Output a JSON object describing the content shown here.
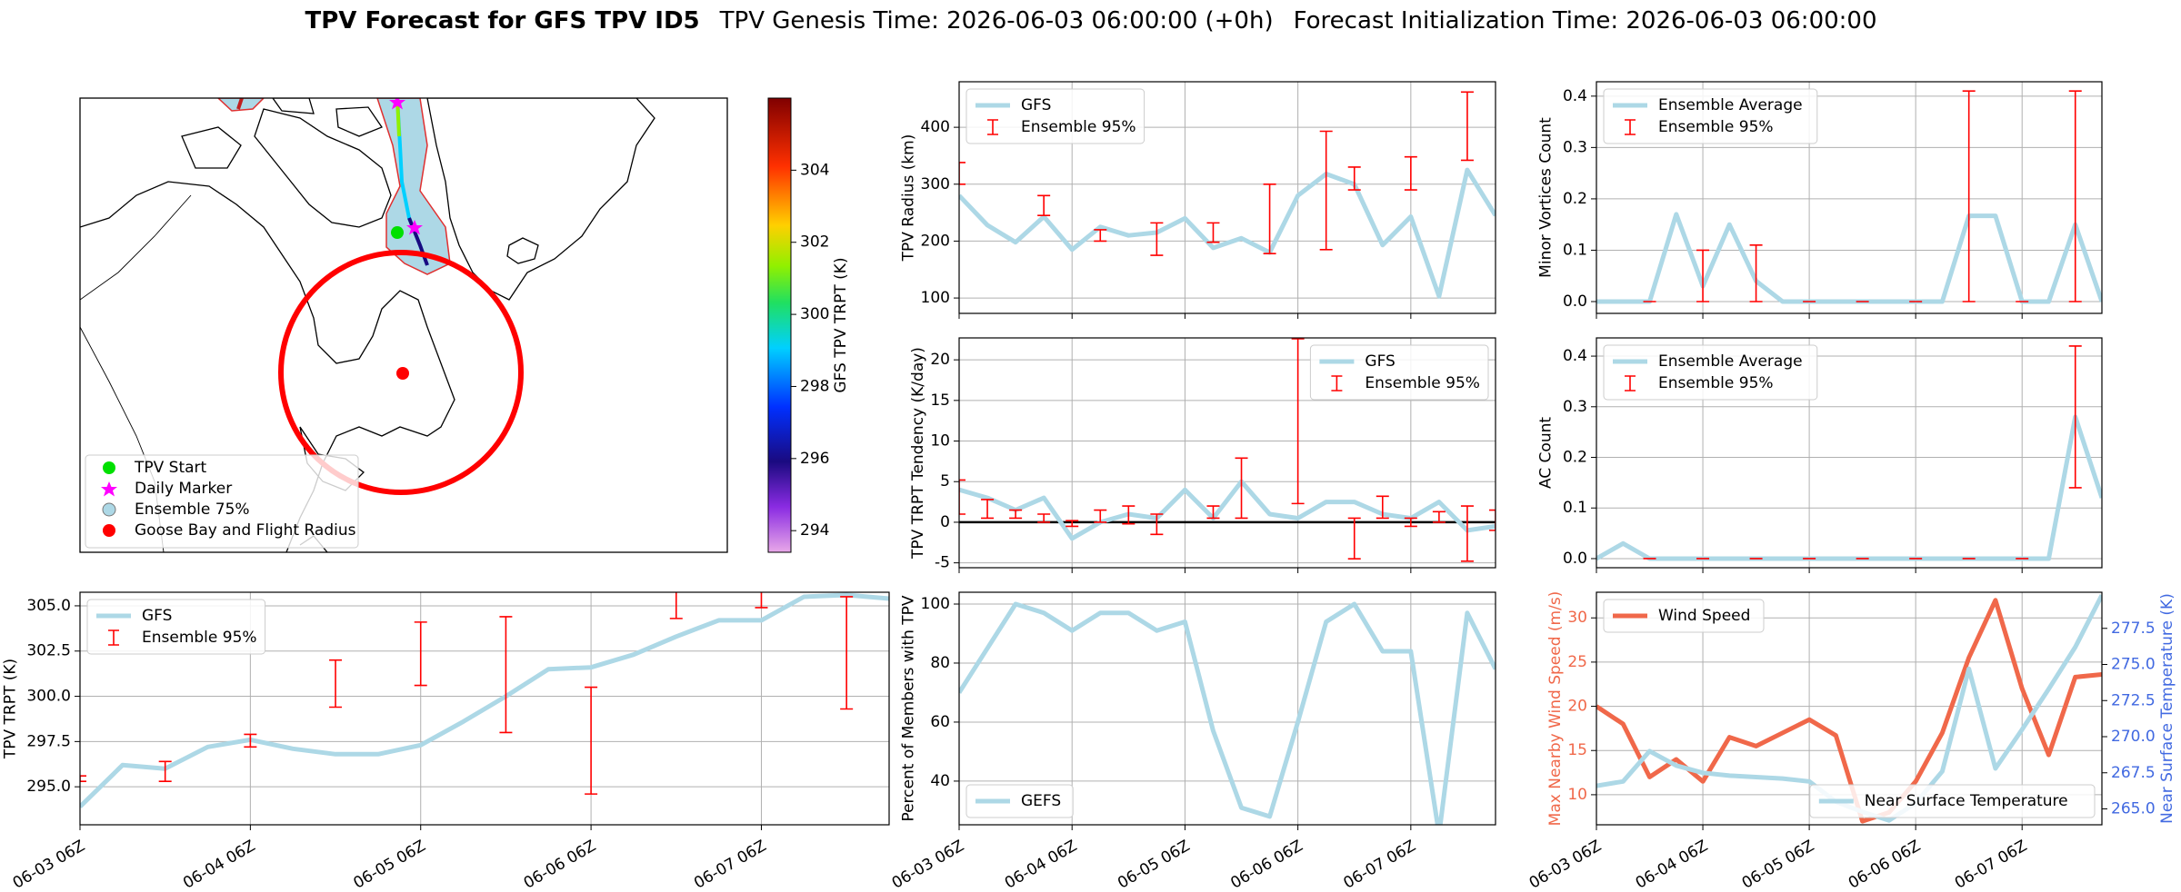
{
  "title": {
    "main": "TPV Forecast for GFS TPV ID5",
    "genesis": "TPV Genesis Time: 2026-06-03 06:00:00 (+0h)",
    "init": "Forecast Initialization Time: 2026-06-03 06:00:00"
  },
  "map": {
    "legend": [
      "TPV Start",
      "Daily Marker",
      "Ensemble 75%",
      "Goose Bay and Flight Radius"
    ],
    "colorbar": {
      "label": "GFS TPV TRPT (K)",
      "lim": [
        293.4,
        306
      ],
      "ticks": [
        294,
        296,
        298,
        300,
        302,
        304
      ]
    }
  },
  "chart_data": [
    {
      "type": "line",
      "ylabel": "TPV TRPT (K)",
      "grid": true,
      "legend": "upper left",
      "x": [
        "06-03 06Z",
        "06-03 12Z",
        "06-03 18Z",
        "06-04 00Z",
        "06-04 06Z",
        "06-04 12Z",
        "06-04 18Z",
        "06-05 00Z",
        "06-05 06Z",
        "06-05 12Z",
        "06-05 18Z",
        "06-06 00Z",
        "06-06 06Z",
        "06-06 12Z",
        "06-06 18Z",
        "06-07 00Z",
        "06-07 06Z",
        "06-07 12Z",
        "06-07 18Z",
        "06-08 00Z"
      ],
      "xticks": [
        "06-03 06Z",
        "06-04 06Z",
        "06-05 06Z",
        "06-06 06Z",
        "06-07 06Z"
      ],
      "ylim": [
        292.9,
        305.75
      ],
      "yticks": [
        {
          "value": 295,
          "label": "295.0"
        },
        {
          "value": 297.5,
          "label": "297.5"
        },
        {
          "value": 300,
          "label": "300.0"
        },
        {
          "value": 302.5,
          "label": "302.5"
        },
        {
          "value": 305,
          "label": "305.0"
        }
      ],
      "series": [
        {
          "name": "GFS",
          "color": "#add8e6",
          "values": [
            293.9,
            296.2,
            296.0,
            297.2,
            297.6,
            297.1,
            296.8,
            296.8,
            297.3,
            298.6,
            300.0,
            301.5,
            301.6,
            302.3,
            303.3,
            304.2,
            304.2,
            305.5,
            305.6,
            305.4
          ]
        }
      ],
      "errorbars": {
        "name": "Ensemble 95%",
        "color": "#ff0000",
        "low": [
          295.3,
          null,
          295.3,
          null,
          297.2,
          null,
          299.4,
          null,
          300.6,
          null,
          298.0,
          null,
          294.6,
          null,
          304.3,
          null,
          304.9,
          null,
          299.3,
          null
        ],
        "high": [
          295.6,
          null,
          296.4,
          null,
          297.9,
          null,
          302.0,
          null,
          304.1,
          null,
          304.4,
          null,
          300.5,
          null,
          305.8,
          null,
          306.3,
          null,
          305.5,
          null
        ]
      }
    },
    {
      "type": "line",
      "ylabel": "TPV Radius (km)",
      "grid": true,
      "legend": "upper left",
      "ylim": [
        73,
        480
      ],
      "yticks": [
        100,
        200,
        300,
        400
      ],
      "series": [
        {
          "name": "GFS",
          "color": "#add8e6",
          "values": [
            280,
            228,
            198,
            243,
            185,
            225,
            210,
            215,
            240,
            188,
            205,
            180,
            280,
            318,
            300,
            193,
            243,
            103,
            325,
            245
          ]
        }
      ],
      "errorbars": {
        "name": "Ensemble 95%",
        "color": "#ff0000",
        "low": [
          300,
          null,
          null,
          245,
          null,
          200,
          null,
          175,
          null,
          198,
          null,
          178,
          null,
          185,
          290,
          null,
          290,
          null,
          342,
          null
        ],
        "high": [
          338,
          null,
          null,
          280,
          null,
          220,
          null,
          232,
          null,
          232,
          null,
          300,
          null,
          393,
          330,
          null,
          348,
          null,
          462,
          null
        ]
      }
    },
    {
      "type": "line",
      "ylabel": "TPV TRPT Tendency (K/day)",
      "grid": true,
      "legend": "upper right",
      "hline": 0,
      "ylim": [
        -5.6,
        22.7
      ],
      "yticks": [
        -5,
        0,
        5,
        10,
        15,
        20
      ],
      "series": [
        {
          "name": "GFS",
          "color": "#add8e6",
          "values": [
            4,
            3,
            1.5,
            3,
            -2,
            0,
            1,
            0.5,
            4,
            0.5,
            5,
            1,
            0.5,
            2.5,
            2.5,
            1,
            0.5,
            2.5,
            -1,
            -0.5
          ]
        }
      ],
      "errorbars": {
        "name": "Ensemble 95%",
        "color": "#ff0000",
        "low": [
          1,
          0.5,
          0.5,
          0,
          -0.5,
          0,
          -0.2,
          -1.5,
          null,
          0.5,
          0.5,
          null,
          2.3,
          null,
          -4.5,
          0.5,
          -0.5,
          0,
          -4.8,
          -1
        ],
        "high": [
          5.2,
          2.8,
          1.5,
          1,
          0.2,
          1.5,
          2,
          1,
          null,
          2,
          7.9,
          null,
          22.6,
          null,
          0.5,
          3.2,
          0.5,
          1.3,
          2,
          1.5
        ]
      }
    },
    {
      "type": "line",
      "ylabel": "Percent of Members with TPV",
      "grid": true,
      "legend": "lower left",
      "x": [
        "06-03 06Z",
        "06-03 12Z",
        "06-03 18Z",
        "06-04 00Z",
        "06-04 06Z",
        "06-04 12Z",
        "06-04 18Z",
        "06-05 00Z",
        "06-05 06Z",
        "06-05 12Z",
        "06-05 18Z",
        "06-06 00Z",
        "06-06 06Z",
        "06-06 12Z",
        "06-06 18Z",
        "06-07 00Z",
        "06-07 06Z",
        "06-07 12Z",
        "06-07 18Z",
        "06-08 00Z"
      ],
      "xticks": [
        "06-03 06Z",
        "06-04 06Z",
        "06-05 06Z",
        "06-06 06Z",
        "06-07 06Z"
      ],
      "ylim": [
        25.2,
        104
      ],
      "yticks": [
        40,
        60,
        80,
        100
      ],
      "series": [
        {
          "name": "GEFS",
          "color": "#add8e6",
          "values": [
            70,
            85,
            100,
            97,
            91,
            97,
            97,
            91,
            94,
            57,
            31,
            28,
            60,
            94,
            100,
            84,
            84,
            22,
            97,
            78
          ]
        }
      ]
    },
    {
      "type": "line",
      "ylabel": "Minor Vortices Count",
      "grid": true,
      "legend": "upper left",
      "ylim": [
        -0.023,
        0.428
      ],
      "yticks": [
        {
          "value": 0,
          "label": "0.0"
        },
        {
          "value": 0.1,
          "label": "0.1"
        },
        {
          "value": 0.2,
          "label": "0.2"
        },
        {
          "value": 0.3,
          "label": "0.3"
        },
        {
          "value": 0.4,
          "label": "0.4"
        }
      ],
      "series": [
        {
          "name": "Ensemble Average",
          "color": "#add8e6",
          "values": [
            0,
            0,
            0,
            0.17,
            0.03,
            0.15,
            0.04,
            0,
            0,
            0,
            0,
            0,
            0,
            0,
            0.167,
            0.167,
            0,
            0,
            0.15,
            0
          ]
        }
      ],
      "errorbars": {
        "name": "Ensemble 95%",
        "color": "#ff0000",
        "low": [
          null,
          null,
          0,
          null,
          0,
          null,
          0,
          null,
          0,
          null,
          0,
          null,
          0,
          null,
          0,
          null,
          0,
          null,
          0,
          null
        ],
        "high": [
          null,
          null,
          0,
          null,
          0.1,
          null,
          0.11,
          null,
          0,
          null,
          0,
          null,
          0,
          null,
          0.41,
          null,
          0,
          null,
          0.41,
          null
        ]
      }
    },
    {
      "type": "line",
      "ylabel": "AC Count",
      "grid": true,
      "legend": "upper left",
      "ylim": [
        -0.018,
        0.436
      ],
      "yticks": [
        {
          "value": 0,
          "label": "0.0"
        },
        {
          "value": 0.1,
          "label": "0.1"
        },
        {
          "value": 0.2,
          "label": "0.2"
        },
        {
          "value": 0.3,
          "label": "0.3"
        },
        {
          "value": 0.4,
          "label": "0.4"
        }
      ],
      "series": [
        {
          "name": "Ensemble Average",
          "color": "#add8e6",
          "values": [
            0,
            0.03,
            0,
            0,
            0,
            0,
            0,
            0,
            0,
            0,
            0,
            0,
            0,
            0,
            0,
            0,
            0,
            0,
            0.28,
            0.12
          ]
        }
      ],
      "errorbars": {
        "name": "Ensemble 95%",
        "color": "#ff0000",
        "low": [
          null,
          null,
          0,
          null,
          0,
          null,
          0,
          null,
          0,
          null,
          0,
          null,
          0,
          null,
          0,
          null,
          0,
          null,
          0.14,
          null
        ],
        "high": [
          null,
          null,
          0,
          null,
          0,
          null,
          0,
          null,
          0,
          null,
          0,
          null,
          0,
          null,
          0,
          null,
          0,
          null,
          0.42,
          null
        ]
      }
    },
    {
      "type": "line",
      "ylabel": "Max Nearby Wind Speed (m/s)",
      "y2label": "Near Surface Temperature (K)",
      "grid": true,
      "legend": "upper left",
      "y2legend": "lower right",
      "ycolor": "#f0684a",
      "y2color": "#4169e1",
      "x": [
        "06-03 06Z",
        "06-03 12Z",
        "06-03 18Z",
        "06-04 00Z",
        "06-04 06Z",
        "06-04 12Z",
        "06-04 18Z",
        "06-05 00Z",
        "06-05 06Z",
        "06-05 12Z",
        "06-05 18Z",
        "06-06 00Z",
        "06-06 06Z",
        "06-06 12Z",
        "06-06 18Z",
        "06-07 00Z",
        "06-07 06Z",
        "06-07 12Z",
        "06-07 18Z",
        "06-08 00Z"
      ],
      "xticks": [
        "06-03 06Z",
        "06-04 06Z",
        "06-05 06Z",
        "06-06 06Z",
        "06-07 06Z"
      ],
      "ylim": [
        6.6,
        32.9
      ],
      "yticks": [
        10,
        15,
        20,
        25,
        30
      ],
      "y2lim": [
        263.9,
        280.0
      ],
      "y2ticks": [
        {
          "value": 265,
          "label": "265.0"
        },
        {
          "value": 267.5,
          "label": "267.5"
        },
        {
          "value": 270,
          "label": "270.0"
        },
        {
          "value": 272.5,
          "label": "272.5"
        },
        {
          "value": 275,
          "label": "275.0"
        },
        {
          "value": 277.5,
          "label": "277.5"
        }
      ],
      "series": [
        {
          "name": "Wind Speed",
          "color": "#f0684a",
          "values": [
            20,
            18,
            12,
            14,
            11.5,
            16.5,
            15.5,
            17,
            18.5,
            16.7,
            7,
            8,
            11.5,
            17,
            25.5,
            32,
            22,
            14.5,
            23.3,
            23.6
          ]
        },
        {
          "name": "Near Surface Temperature",
          "color": "#add8e6",
          "axis": "y2",
          "values": [
            266.6,
            266.9,
            269.0,
            268.0,
            267.5,
            267.3,
            267.2,
            267.1,
            266.9,
            265.5,
            264.8,
            264.2,
            265.4,
            267.6,
            274.7,
            267.8,
            270.5,
            273.3,
            276.2,
            279.8
          ]
        }
      ]
    }
  ]
}
